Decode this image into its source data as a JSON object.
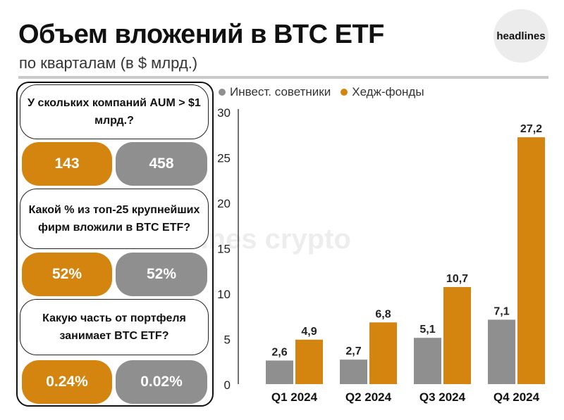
{
  "header": {
    "title": "Объем вложений в BTC ETF",
    "subtitle": "по кварталам (в $ млрд.)",
    "logo": "headlines"
  },
  "watermark": "headlines crypto",
  "panel": {
    "q1": "У скольких компаний AUM > $1 млрд.?",
    "q1_orange": "143",
    "q1_gray": "458",
    "q2": "Какой % из топ-25 крупнейших фирм вложили в BTC ETF?",
    "q2_orange": "52%",
    "q2_gray": "52%",
    "q3": "Какую часть от портфеля занимает BTC ETF?",
    "q3_orange": "0.24%",
    "q3_gray": "0.02%"
  },
  "colors": {
    "orange": "#d4850f",
    "gray": "#8f8f8f"
  },
  "chart_data": {
    "type": "bar",
    "categories": [
      "Q1 2024",
      "Q2 2024",
      "Q3 2024",
      "Q4 2024"
    ],
    "series": [
      {
        "name": "Инвест. советники",
        "values": [
          2.6,
          2.7,
          5.1,
          7.1
        ],
        "labels": [
          "2,6",
          "2,7",
          "5,1",
          "7,1"
        ],
        "color": "#8f8f8f"
      },
      {
        "name": "Хедж-фонды",
        "values": [
          4.9,
          6.8,
          10.7,
          27.2
        ],
        "labels": [
          "4,9",
          "6,8",
          "10,7",
          "27,2"
        ],
        "color": "#d4850f"
      }
    ],
    "yticks": [
      "0",
      "5",
      "10",
      "15",
      "20",
      "25",
      "30"
    ],
    "ylim": [
      0,
      30
    ],
    "legend": "top-left",
    "grid": false
  }
}
